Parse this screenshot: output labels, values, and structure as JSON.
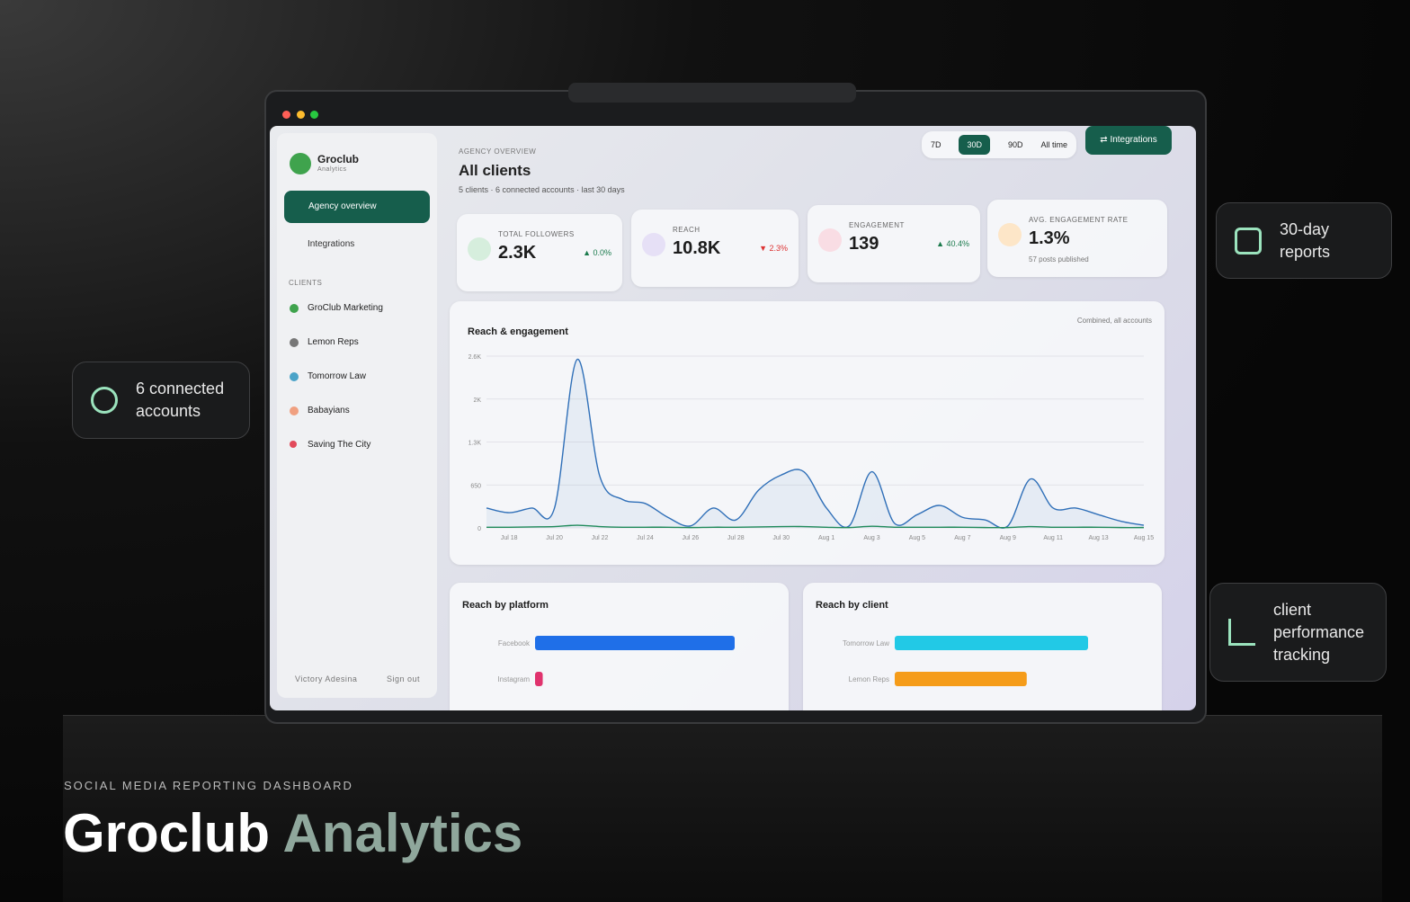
{
  "hero": {
    "eyebrow": "SOCIAL MEDIA REPORTING DASHBOARD",
    "title_main": "Groclub",
    "title_accent": "Analytics"
  },
  "badges": [
    "6 connected accounts",
    "30-day reports",
    "client performance tracking"
  ],
  "sidebar": {
    "brand": "Groclub",
    "brand_sub": "Analytics",
    "nav": [
      "Agency overview",
      "Integrations"
    ],
    "section": "CLIENTS",
    "clients": [
      "GroClub Marketing",
      "Lemon Reps",
      "Tomorrow Law",
      "Babayians",
      "Saving The City"
    ],
    "user": "Victory Adesina",
    "sign_out": "Sign out"
  },
  "header": {
    "eyebrow": "AGENCY OVERVIEW",
    "title": "All clients",
    "subtitle": "5 clients · 6 connected accounts · last 30 days",
    "ranges": [
      "7D",
      "30D",
      "90D",
      "All time"
    ],
    "button": "⇄ Integrations"
  },
  "stats": [
    {
      "label": "TOTAL FOLLOWERS",
      "value": "2.3K",
      "change": "▲ 0.0%"
    },
    {
      "label": "REACH",
      "value": "10.8K",
      "change": "▼ 2.3%"
    },
    {
      "label": "ENGAGEMENT",
      "value": "139",
      "change": "▲ 40.4%"
    },
    {
      "label": "AVG. ENGAGEMENT RATE",
      "value": "1.3%",
      "note": "57 posts published"
    }
  ],
  "chart_data": [
    {
      "type": "line",
      "title": "Reach & engagement",
      "subtitle": "Combined, all accounts",
      "categories": [
        null,
        "Jul 18",
        null,
        "Jul 20",
        null,
        "Jul 22",
        null,
        "Jul 24",
        null,
        "Jul 26",
        null,
        "Jul 28",
        null,
        "Jul 30",
        null,
        "Aug 1",
        null,
        "Aug 3",
        null,
        "Aug 5",
        null,
        "Aug 7",
        null,
        "Aug 9",
        null,
        "Aug 11",
        null,
        "Aug 13",
        null,
        "Aug 15"
      ],
      "series": [
        {
          "color": "#2f6fb8",
          "values": [
            300,
            230,
            300,
            300,
            2550,
            780,
            430,
            370,
            160,
            30,
            300,
            120,
            570,
            800,
            850,
            300,
            30,
            850,
            70,
            200,
            340,
            160,
            120,
            30,
            740,
            300,
            300,
            200,
            100,
            40
          ]
        },
        {
          "color": "#1f8a5a",
          "values": [
            10,
            10,
            15,
            20,
            40,
            20,
            10,
            10,
            10,
            5,
            10,
            10,
            15,
            20,
            20,
            10,
            5,
            25,
            10,
            10,
            10,
            10,
            5,
            5,
            20,
            10,
            10,
            10,
            5,
            5
          ]
        }
      ],
      "ylim": [
        0,
        2600
      ],
      "yticks": [
        0,
        650,
        {
          "value": 1300,
          "label": "1.3K"
        },
        {
          "value": 1950,
          "label": "2K"
        },
        {
          "value": 2600,
          "label": "2.6K"
        }
      ],
      "grid": true
    },
    {
      "type": "bar",
      "orientation": "horizontal",
      "title": "Reach by platform",
      "categories": [
        "Facebook",
        "Instagram"
      ],
      "values": [
        10400,
        400
      ],
      "colors": [
        "#1f6fe8",
        "#e0336e"
      ]
    },
    {
      "type": "bar",
      "orientation": "horizontal",
      "title": "Reach by client",
      "categories": [
        "Tomorrow Law",
        "Lemon Reps"
      ],
      "values": [
        5200,
        3550
      ],
      "colors": [
        "#22c9e6",
        "#f59c1a"
      ]
    }
  ]
}
